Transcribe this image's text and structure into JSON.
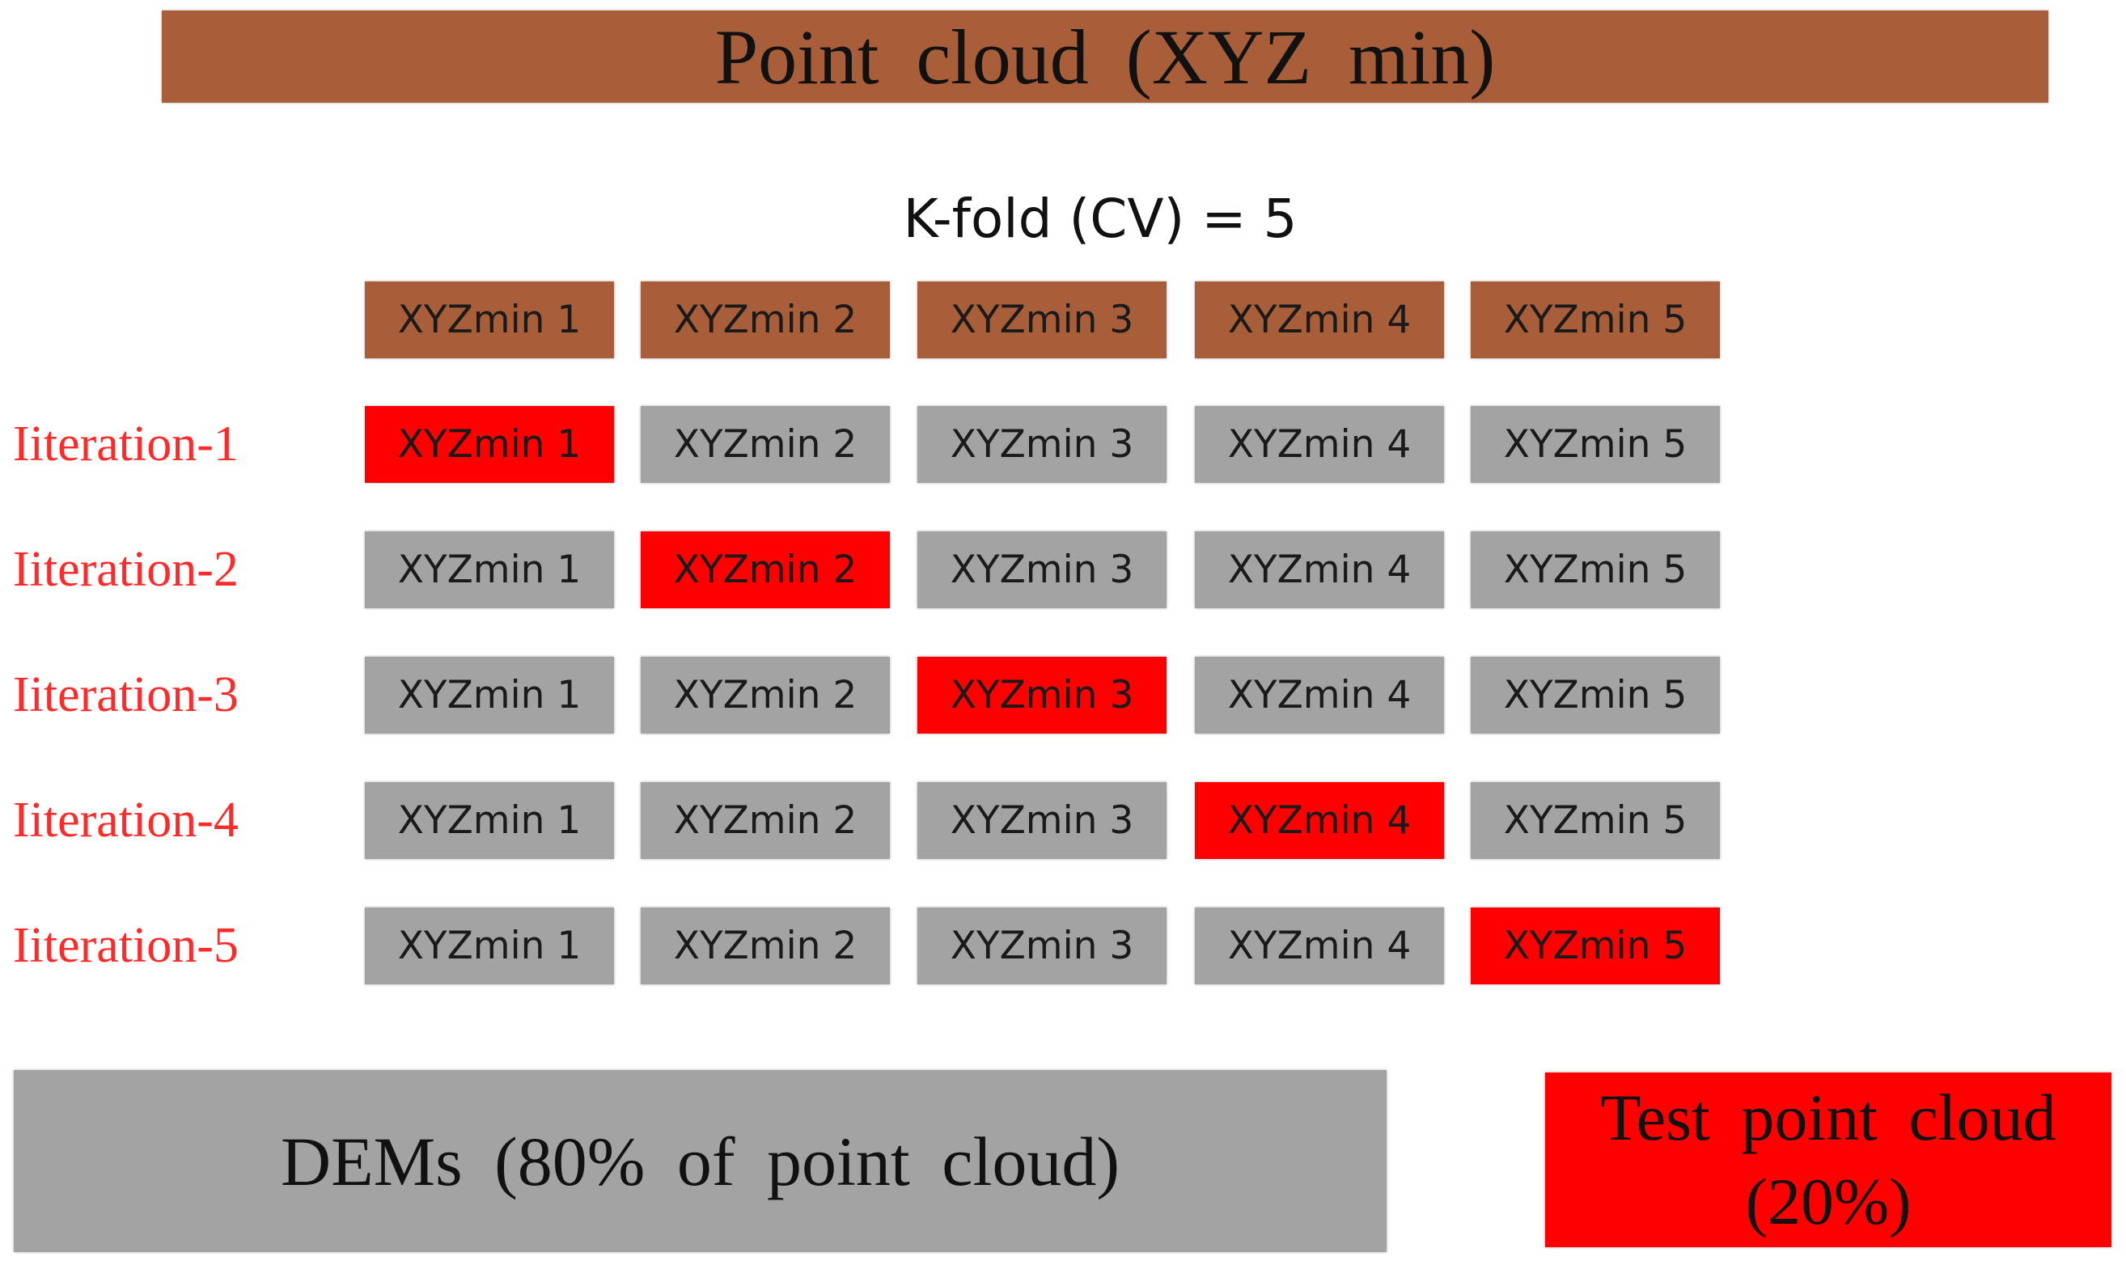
{
  "header": {
    "title": "Point cloud (XYZ min)"
  },
  "kfold_label": "K-fold (CV) = 5",
  "colors": {
    "brown": "#a85e38",
    "gray": "#a3a3a3",
    "red": "#ff0000",
    "label_red": "#ff2a2a"
  },
  "folds": [
    {
      "label": "",
      "cells": [
        "XYZmin 1",
        "XYZmin 2",
        "XYZmin 3",
        "XYZmin 4",
        "XYZmin 5"
      ],
      "highlight": -1,
      "base": "brown"
    },
    {
      "label": "Iiteration-1",
      "cells": [
        "XYZmin 1",
        "XYZmin 2",
        "XYZmin 3",
        "XYZmin 4",
        "XYZmin 5"
      ],
      "highlight": 0,
      "base": "gray"
    },
    {
      "label": "Iiteration-2",
      "cells": [
        "XYZmin 1",
        "XYZmin 2",
        "XYZmin 3",
        "XYZmin 4",
        "XYZmin 5"
      ],
      "highlight": 1,
      "base": "gray"
    },
    {
      "label": "Iiteration-3",
      "cells": [
        "XYZmin 1",
        "XYZmin 2",
        "XYZmin 3",
        "XYZmin 4",
        "XYZmin 5"
      ],
      "highlight": 2,
      "base": "gray"
    },
    {
      "label": "Iiteration-4",
      "cells": [
        "XYZmin 1",
        "XYZmin 2",
        "XYZmin 3",
        "XYZmin 4",
        "XYZmin 5"
      ],
      "highlight": 3,
      "base": "gray"
    },
    {
      "label": "Iiteration-5",
      "cells": [
        "XYZmin 1",
        "XYZmin 2",
        "XYZmin 3",
        "XYZmin 4",
        "XYZmin 5"
      ],
      "highlight": 4,
      "base": "gray"
    }
  ],
  "dems": {
    "label": "DEMs (80% of point cloud)"
  },
  "test": {
    "line1": "Test point cloud",
    "line2": "(20%)"
  }
}
